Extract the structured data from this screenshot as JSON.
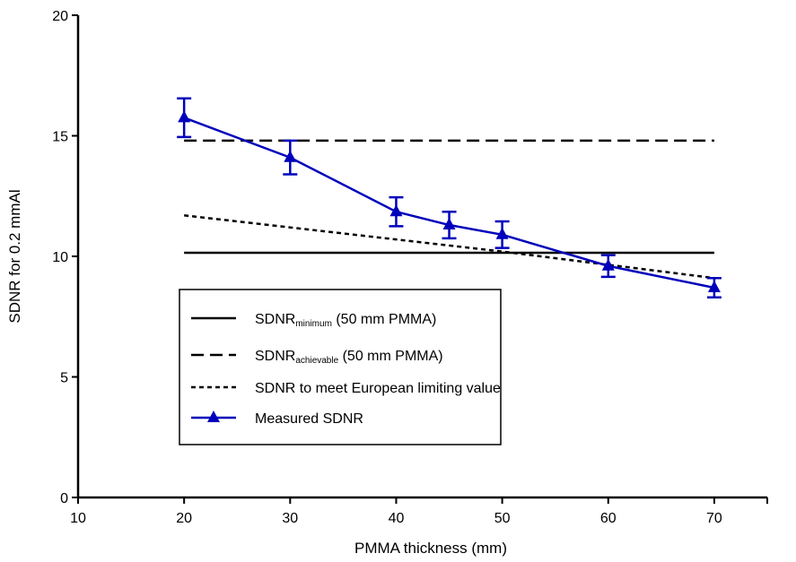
{
  "chart_data": {
    "type": "line",
    "xlabel": "PMMA thickness (mm)",
    "ylabel": "SDNR for 0.2 mmAl",
    "xlim": [
      10,
      75
    ],
    "ylim": [
      0,
      20
    ],
    "x_ticks": [
      10,
      20,
      30,
      40,
      50,
      60,
      70
    ],
    "y_ticks": [
      0,
      5,
      10,
      15,
      20
    ],
    "x_tick_labels": [
      "10",
      "20",
      "30",
      "40",
      "50",
      "60",
      "70"
    ],
    "y_tick_labels": [
      "0",
      "5",
      "10",
      "15",
      "20"
    ],
    "grid": false,
    "legend_placement": "center-left",
    "series": [
      {
        "key": "minimum",
        "style": "solid",
        "color": "#000000",
        "x": [
          20,
          70
        ],
        "y": [
          10.15,
          10.15
        ]
      },
      {
        "key": "achievable",
        "style": "dashed",
        "color": "#000000",
        "x": [
          20,
          70
        ],
        "y": [
          14.8,
          14.8
        ]
      },
      {
        "key": "european",
        "style": "dotted",
        "color": "#000000",
        "x": [
          20,
          30,
          40,
          50,
          60,
          70
        ],
        "y": [
          11.7,
          11.2,
          10.7,
          10.2,
          9.65,
          9.1
        ]
      },
      {
        "key": "measured",
        "style": "solid-markers",
        "color": "#0000bb",
        "marker": "triangle",
        "x": [
          20,
          30,
          40,
          45,
          50,
          60,
          70
        ],
        "y": [
          15.75,
          14.1,
          11.85,
          11.3,
          10.9,
          9.6,
          8.7
        ],
        "err": [
          0.8,
          0.7,
          0.6,
          0.55,
          0.55,
          0.45,
          0.4
        ]
      }
    ],
    "legend": [
      {
        "key": "minimum",
        "prefix": "SDNR",
        "sub": "minimum",
        "suffix": " (50 mm PMMA)"
      },
      {
        "key": "achievable",
        "prefix": "SDNR",
        "sub": "achievable",
        "suffix": " (50 mm PMMA)"
      },
      {
        "key": "european",
        "prefix": "SDNR to meet European limiting value",
        "sub": "",
        "suffix": ""
      },
      {
        "key": "measured",
        "prefix": "Measured SDNR",
        "sub": "",
        "suffix": ""
      }
    ]
  }
}
